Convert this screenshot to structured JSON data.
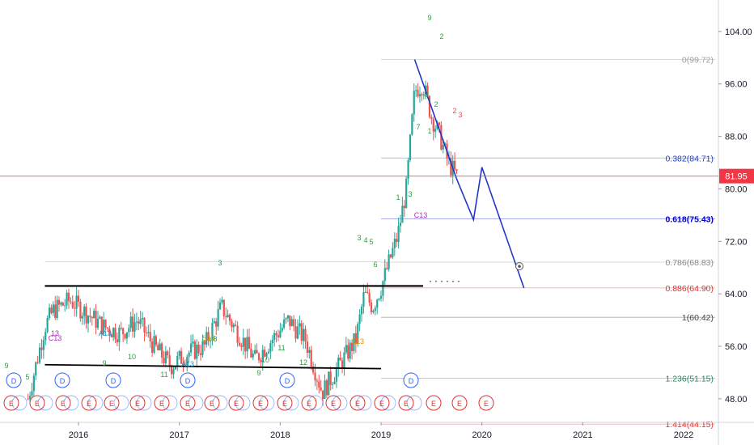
{
  "chart_data": {
    "type": "candlestick",
    "symbol_interval": "weekly",
    "y_axis": {
      "ticks": [
        "104.00",
        "96.00",
        "88.00",
        "80.00",
        "72.00",
        "64.00",
        "56.00",
        "48.00"
      ],
      "min": 42.6,
      "max": 104.6,
      "position": "right"
    },
    "x_axis": {
      "ticks": [
        "2016",
        "2017",
        "2018",
        "2019",
        "2020",
        "2021",
        "2022"
      ]
    },
    "last_price": {
      "label": "81.95",
      "value": 81.95,
      "color": "#f23645"
    },
    "fib_levels": [
      {
        "label": "0(99.72)",
        "value": 99.72,
        "color": "#9e9e9e"
      },
      {
        "label": "0.382(84.71)",
        "value": 84.71,
        "color": "#1e3ecf"
      },
      {
        "label": "0.618(75.43)",
        "value": 75.43,
        "color": "#0000cc"
      },
      {
        "label": "0.786(68.83)",
        "value": 68.83,
        "color": "#8a8a8a"
      },
      {
        "label": "0.886(64.90)",
        "value": 64.9,
        "color": "#e0312e"
      },
      {
        "label": "1(60.42)",
        "value": 60.42,
        "color": "#444444"
      },
      {
        "label": "1.236(51.15)",
        "value": 51.15,
        "color": "#1e8a5a"
      },
      {
        "label": "1.414(44.15)",
        "value": 44.15,
        "color": "#e0312e"
      }
    ],
    "resistance_line": {
      "from": [
        "2015-09",
        65.2
      ],
      "to": [
        "2019-06",
        65.2
      ]
    },
    "support_line": {
      "from": [
        "2015-09",
        53.2
      ],
      "to": [
        "2019-01",
        52.6
      ]
    },
    "projection_path": [
      [
        "2019-05",
        99.72
      ],
      [
        "2019-10",
        81.5
      ],
      [
        "2019-12",
        75.3
      ],
      [
        "2020-01",
        83.3
      ],
      [
        "2020-06",
        64.9
      ]
    ],
    "price_path_weekly_approx": [
      [
        "2015-07",
        48
      ],
      [
        "2015-09",
        59
      ],
      [
        "2015-10",
        61.5
      ],
      [
        "2015-12",
        63
      ],
      [
        "2016-02",
        61
      ],
      [
        "2016-04",
        59
      ],
      [
        "2016-06",
        58
      ],
      [
        "2016-08",
        60
      ],
      [
        "2016-10",
        56
      ],
      [
        "2016-12",
        53
      ],
      [
        "2017-02",
        55
      ],
      [
        "2017-04",
        56
      ],
      [
        "2017-06",
        62
      ],
      [
        "2017-08",
        58
      ],
      [
        "2017-10",
        54
      ],
      [
        "2017-12",
        57
      ],
      [
        "2018-02",
        60
      ],
      [
        "2018-04",
        57
      ],
      [
        "2018-06",
        49
      ],
      [
        "2018-08",
        53
      ],
      [
        "2018-10",
        57
      ],
      [
        "2018-11",
        64
      ],
      [
        "2018-12",
        62
      ],
      [
        "2019-01",
        65
      ],
      [
        "2019-02",
        69
      ],
      [
        "2019-03",
        73
      ],
      [
        "2019-04",
        80
      ],
      [
        "2019-05",
        95
      ],
      [
        "2019-06",
        96
      ],
      [
        "2019-07",
        91
      ],
      [
        "2019-08",
        88
      ],
      [
        "2019-09",
        84
      ],
      [
        "2019-10",
        81.95
      ]
    ],
    "td_labels": [
      {
        "text": "9",
        "color": "green"
      },
      {
        "text": "13",
        "color": "magenta"
      },
      {
        "text": "C13",
        "color": "magenta"
      },
      {
        "text": "A13",
        "color": "#1a8fbf"
      },
      {
        "text": "S13",
        "color": "orange"
      },
      {
        "text": "10",
        "color": "green"
      },
      {
        "text": "11",
        "color": "green"
      },
      {
        "text": "12",
        "color": "green"
      },
      {
        "text": "5",
        "color": "green"
      },
      {
        "text": "8",
        "color": "green"
      },
      {
        "text": "2",
        "color": "green"
      },
      {
        "text": "3",
        "color": "green"
      },
      {
        "text": "1",
        "color": "green"
      }
    ],
    "event_markers": {
      "dividends": "D",
      "earnings": "E"
    }
  }
}
